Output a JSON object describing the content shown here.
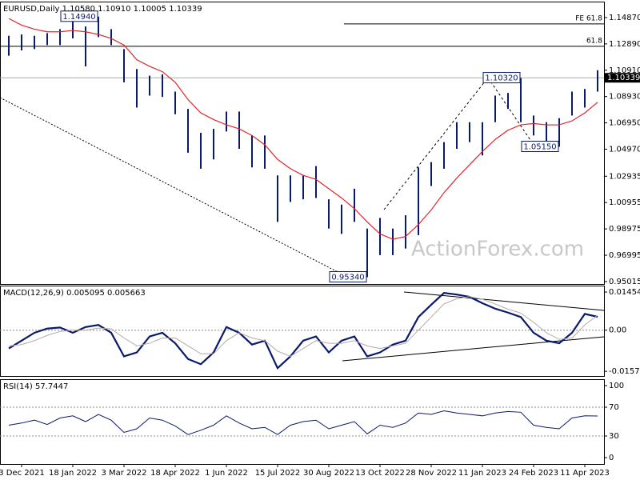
{
  "watermark": "ActionForex.com",
  "chart_data": [
    {
      "type": "ohlc",
      "title": "EURUSD,Daily  1.10580 1.10910 1.10005 1.10339",
      "color": "#0a1a6b",
      "high": [
        1.135,
        1.136,
        1.135,
        1.137,
        1.14,
        1.149,
        1.142,
        1.1494,
        1.14,
        1.125,
        1.11,
        1.105,
        1.106,
        1.093,
        1.08,
        1.062,
        1.065,
        1.078,
        1.078,
        1.06,
        1.06,
        1.03,
        1.03,
        1.03,
        1.037,
        1.012,
        1.008,
        1.02,
        0.99,
        0.998,
        0.99,
        1.0,
        1.036,
        1.04,
        1.055,
        1.07,
        1.07,
        1.07,
        1.09,
        1.092,
        1.1032,
        1.075,
        1.07,
        1.073,
        1.093,
        1.095,
        1.1091
      ],
      "low": [
        1.12,
        1.124,
        1.125,
        1.128,
        1.128,
        1.133,
        1.112,
        1.134,
        1.128,
        1.1,
        1.081,
        1.09,
        1.089,
        1.076,
        1.047,
        1.035,
        1.042,
        1.063,
        1.05,
        1.036,
        1.035,
        0.995,
        1.01,
        1.012,
        1.013,
        0.99,
        0.986,
        0.995,
        0.9534,
        0.97,
        0.97,
        0.975,
        0.985,
        1.022,
        1.035,
        1.05,
        1.055,
        1.045,
        1.07,
        1.08,
        1.07,
        1.06,
        1.052,
        1.0515,
        1.075,
        1.081,
        1.093
      ],
      "ma": {
        "color": "#e0262b",
        "values": [
          1.148,
          1.143,
          1.14,
          1.138,
          1.138,
          1.139,
          1.138,
          1.136,
          1.133,
          1.128,
          1.117,
          1.112,
          1.108,
          1.1,
          1.087,
          1.077,
          1.072,
          1.068,
          1.065,
          1.06,
          1.053,
          1.042,
          1.035,
          1.03,
          1.027,
          1.02,
          1.013,
          1.005,
          0.995,
          0.986,
          0.982,
          0.984,
          0.993,
          1.004,
          1.017,
          1.028,
          1.038,
          1.048,
          1.057,
          1.064,
          1.068,
          1.069,
          1.068,
          1.068,
          1.071,
          1.077,
          1.085
        ]
      },
      "ylim": [
        0.9483,
        1.1601
      ],
      "yticks": [
        {
          "value": 1.1487,
          "label": "1.14870"
        },
        {
          "value": 1.1289,
          "label": "1.12890"
        },
        {
          "value": 1.1091,
          "label": "1.10910"
        },
        {
          "value": 1.0893,
          "label": "1.08930"
        },
        {
          "value": 1.0695,
          "label": "1.06950"
        },
        {
          "value": 1.0497,
          "label": "1.04970"
        },
        1.02935,
        1.00955,
        0.98975,
        0.96995,
        0.95015
      ],
      "price_line": {
        "value": 1.10339,
        "label": "1.10339"
      },
      "annotations": [
        {
          "value": 1.1494,
          "label": "1.14940"
        },
        {
          "value": 1.1032,
          "label": "1.10320"
        },
        {
          "value": 1.0515,
          "label": "1.05150"
        },
        {
          "value": 0.9534,
          "label": "0.95340"
        }
      ],
      "levels": [
        {
          "name": "61.8",
          "value": 1.1271
        },
        {
          "name": "FE 61.8",
          "value": 1.1439
        }
      ]
    },
    {
      "type": "macd",
      "title": "MACD(12,26,9) 0.005095 0.005663",
      "series": [
        {
          "color": "#0a1a6b",
          "values": [
            -0.007,
            -0.004,
            -0.001,
            0.0006,
            0.001,
            -0.001,
            0.0012,
            0.002,
            -0.001,
            -0.01,
            -0.0085,
            -0.0024,
            -0.001,
            -0.005,
            -0.011,
            -0.013,
            -0.0085,
            0.0012,
            -0.001,
            -0.0055,
            -0.004,
            -0.0145,
            -0.01,
            -0.004,
            -0.0024,
            -0.0085,
            -0.004,
            -0.0024,
            -0.01,
            -0.0085,
            -0.0055,
            -0.004,
            0.005,
            0.0097,
            0.0142,
            0.0136,
            0.0127,
            0.0103,
            0.0082,
            0.0067,
            0.005,
            -0.001,
            -0.004,
            -0.005,
            -0.001,
            0.0062,
            0.005095
          ]
        },
        {
          "color": "#b8a8a8",
          "values": [
            -0.006,
            -0.0055,
            -0.004,
            -0.002,
            -0.0005,
            0,
            0,
            0.0008,
            0.0005,
            -0.003,
            -0.006,
            -0.005,
            -0.003,
            -0.003,
            -0.006,
            -0.009,
            -0.009,
            -0.004,
            -0.001,
            -0.003,
            -0.004,
            -0.008,
            -0.01,
            -0.007,
            -0.004,
            -0.005,
            -0.005,
            -0.004,
            -0.006,
            -0.007,
            -0.006,
            -0.005,
            0,
            0.005,
            0.01,
            0.012,
            0.0128,
            0.0118,
            0.01,
            0.008,
            0.0065,
            0.003,
            -0.001,
            -0.0035,
            -0.003,
            0.002,
            0.005663
          ]
        }
      ],
      "ylim": [
        -0.0175,
        0.0167
      ],
      "yticks": [
        0.014549,
        {
          "value": 0,
          "label": "0.00"
        },
        -0.015712
      ],
      "levels": [
        0
      ]
    },
    {
      "type": "line",
      "title": "RSI(14) 57.7447",
      "color": "#0a1a6b",
      "values": [
        45,
        48,
        52,
        46,
        55,
        58,
        50,
        60,
        52,
        35,
        40,
        55,
        52,
        44,
        32,
        38,
        45,
        58,
        48,
        40,
        42,
        32,
        45,
        50,
        52,
        40,
        45,
        50,
        33,
        45,
        42,
        48,
        62,
        60,
        65,
        62,
        60,
        58,
        62,
        64,
        63,
        45,
        42,
        40,
        55,
        58,
        57.7447
      ],
      "ylim": [
        -8.9,
        107.8
      ],
      "yticks": [
        100,
        70,
        30,
        0
      ],
      "levels": [
        30,
        70
      ],
      "categories": [
        null,
        "3 Dec 2021",
        null,
        null,
        null,
        "18 Jan 2022",
        null,
        null,
        null,
        "3 Mar 2022",
        null,
        null,
        null,
        "18 Apr 2022",
        null,
        null,
        null,
        "1 Jun 2022",
        null,
        null,
        null,
        "15 Jul 2022",
        null,
        null,
        null,
        "30 Aug 2022",
        null,
        null,
        null,
        "13 Oct 2022",
        null,
        null,
        null,
        "28 Nov 2022",
        null,
        null,
        null,
        "11 Jan 2023",
        null,
        null,
        null,
        "24 Feb 2023",
        null,
        null,
        null,
        "11 Apr 2023",
        null
      ]
    }
  ]
}
